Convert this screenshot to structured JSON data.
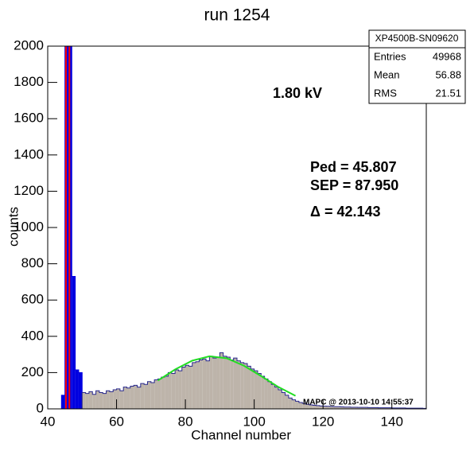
{
  "chart_data": {
    "type": "histogram",
    "title": "run 1254",
    "x_label": "Channel number",
    "y_label": "counts",
    "xlim": [
      40,
      150
    ],
    "ylim": [
      0,
      2000
    ],
    "xticks": [
      40,
      60,
      80,
      100,
      120,
      140
    ],
    "yticks": [
      0,
      200,
      400,
      600,
      800,
      1000,
      1200,
      1400,
      1600,
      1800,
      2000
    ],
    "series": [
      {
        "color": "#0000e0",
        "line_color": "#0000e0",
        "bins": [
          44,
          45,
          46,
          47,
          48,
          49,
          50
        ],
        "values": [
          75,
          2000,
          2000,
          730,
          215,
          200
        ]
      },
      {
        "color": "#bdb4aa",
        "line_color": "#28288c",
        "bins": [
          50,
          51,
          52,
          53,
          54,
          55,
          56,
          57,
          58,
          59,
          60,
          61,
          62,
          63,
          64,
          65,
          66,
          67,
          68,
          69,
          70,
          71,
          72,
          73,
          74,
          75,
          76,
          77,
          78,
          79,
          80,
          81,
          82,
          83,
          84,
          85,
          86,
          87,
          88,
          89,
          90,
          91,
          92,
          93,
          94,
          95,
          96,
          97,
          98,
          99,
          100,
          101,
          102,
          103,
          104,
          105,
          106,
          107,
          108,
          109,
          110,
          111,
          112,
          113,
          114,
          115,
          116,
          117,
          118,
          119,
          120,
          121,
          122,
          123,
          124,
          125,
          126,
          127,
          128,
          129,
          130,
          131,
          132,
          133,
          134,
          135,
          136,
          137,
          138,
          139,
          140,
          141,
          142,
          143,
          144,
          145,
          146,
          147,
          148,
          149,
          150
        ],
        "values": [
          90,
          85,
          95,
          80,
          100,
          90,
          85,
          100,
          95,
          105,
          110,
          100,
          120,
          115,
          125,
          130,
          120,
          140,
          135,
          150,
          145,
          160,
          165,
          175,
          180,
          200,
          195,
          215,
          210,
          230,
          240,
          235,
          255,
          260,
          270,
          275,
          265,
          290,
          280,
          285,
          310,
          290,
          285,
          270,
          280,
          265,
          255,
          250,
          235,
          220,
          210,
          195,
          180,
          165,
          150,
          135,
          120,
          105,
          90,
          75,
          60,
          50,
          42,
          35,
          30,
          25,
          22,
          20,
          18,
          16,
          15,
          14,
          13,
          12,
          12,
          11,
          10,
          10,
          9,
          9,
          8,
          8,
          8,
          7,
          7,
          7,
          6,
          6,
          6,
          6,
          5,
          5,
          5,
          5,
          4,
          4,
          4,
          4,
          4,
          3
        ]
      }
    ],
    "fit": {
      "color": "#22dd22",
      "x": [
        72,
        77,
        82,
        87,
        92,
        97,
        102,
        107,
        112
      ],
      "values": [
        156,
        217,
        266,
        290,
        279,
        238,
        181,
        121,
        72
      ]
    },
    "ped_lines": {
      "color": "#ff0000",
      "x": [
        45.3,
        46.3
      ]
    },
    "stats": {
      "title": "XP4500B-SN09620",
      "rows": [
        [
          "Entries",
          49968
        ],
        [
          "Mean",
          56.88
        ],
        [
          "RMS",
          21.51
        ]
      ]
    },
    "annotations": [
      "1.80 kV",
      "Ped = 45.807",
      "SEP = 87.950",
      "Δ = 42.143"
    ],
    "footer": "MAPC @ 2013-10-10 14:55:37"
  }
}
